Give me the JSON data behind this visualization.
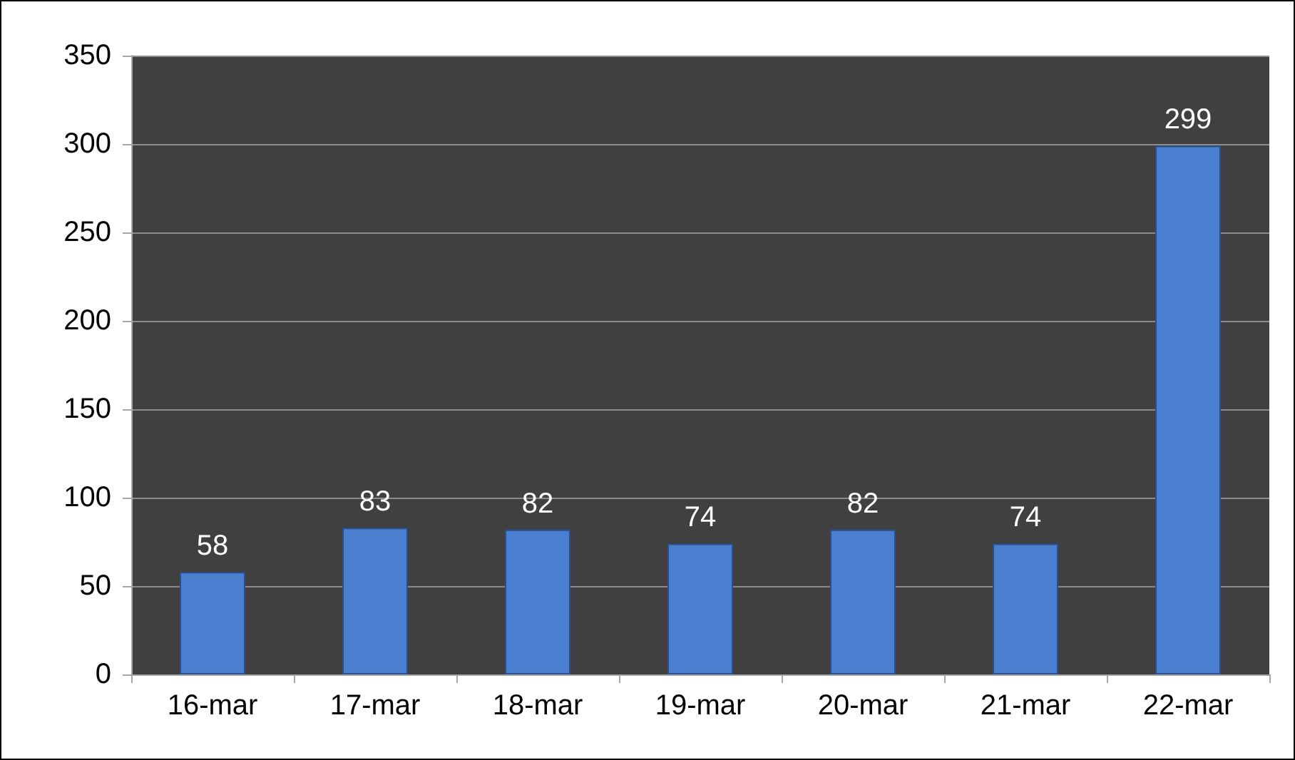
{
  "chart_data": {
    "type": "bar",
    "categories": [
      "16-mar",
      "17-mar",
      "18-mar",
      "19-mar",
      "20-mar",
      "21-mar",
      "22-mar"
    ],
    "values": [
      58,
      83,
      82,
      74,
      82,
      74,
      299
    ],
    "color": "#4a7fd0",
    "ylim": [
      0,
      350
    ],
    "yticks": [
      0,
      50,
      100,
      150,
      200,
      250,
      300,
      350
    ],
    "grid": "y",
    "data_labels": true
  }
}
